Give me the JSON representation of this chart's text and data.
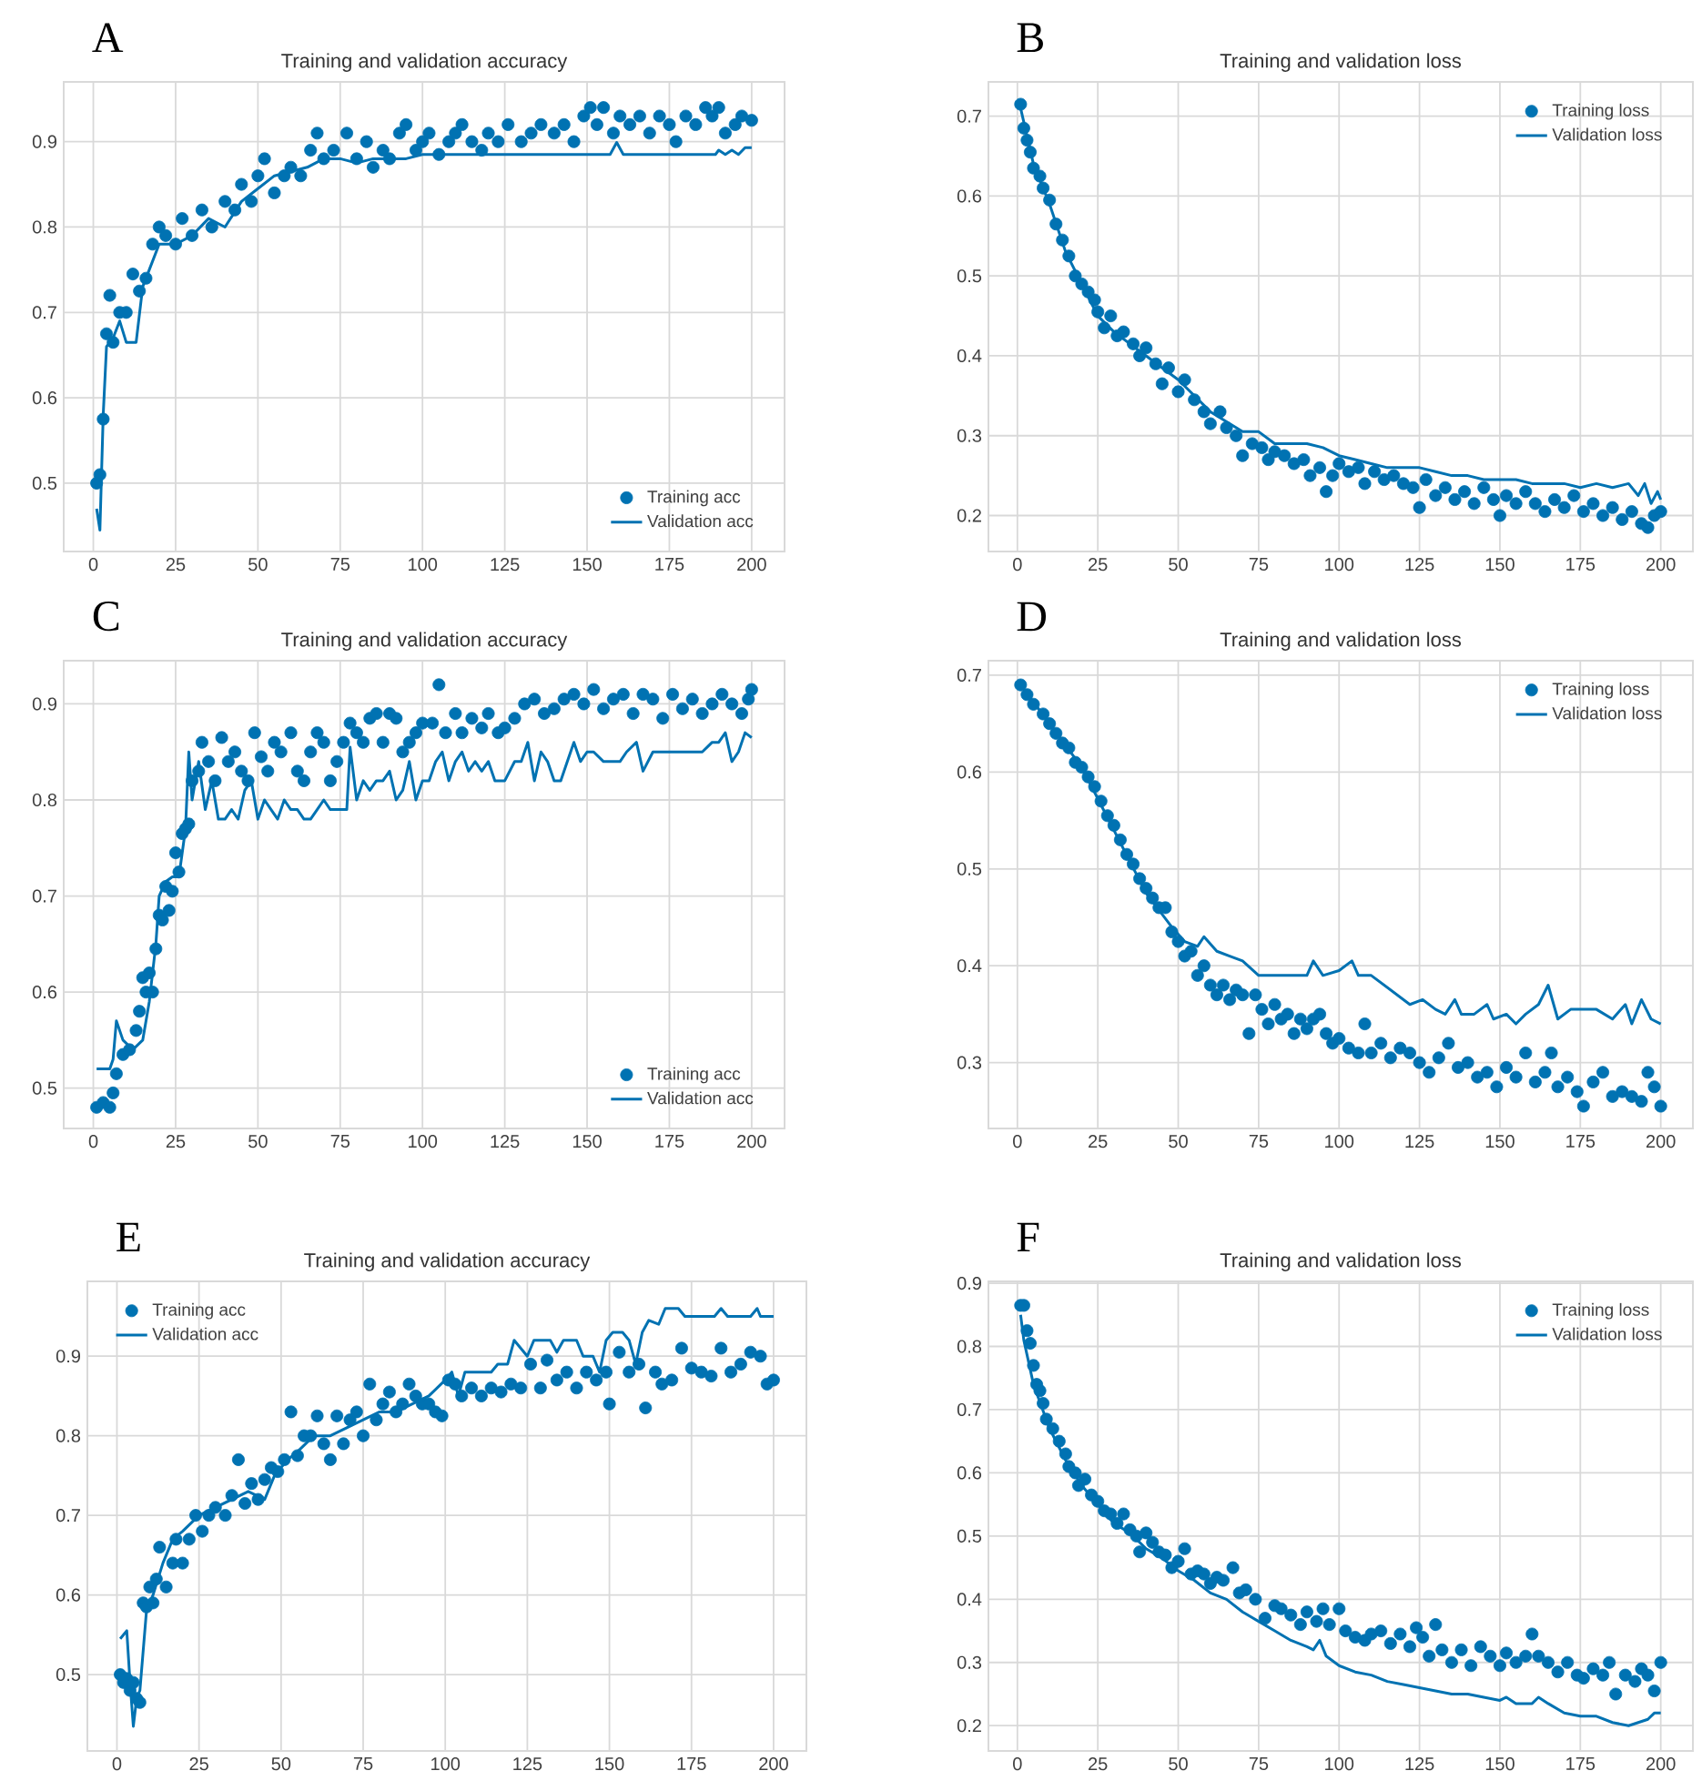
{
  "chart_data": [
    {
      "type": "line",
      "title": "Training and validation accuracy",
      "annotations": [
        "A"
      ],
      "xlim": [
        -9,
        210
      ],
      "xticks": [
        0,
        25,
        50,
        75,
        100,
        125,
        150,
        175,
        200
      ],
      "ylim": [
        0.42,
        0.97
      ],
      "yticks": [
        0.5,
        0.6,
        0.7,
        0.8,
        0.9
      ],
      "grid": true,
      "legend": "bottom right",
      "series": [
        {
          "name": "Training acc",
          "type": "scatter",
          "marker": "circle",
          "color": "#0072b2",
          "x": [
            1,
            2,
            3,
            4,
            5,
            6,
            8,
            10,
            12,
            14,
            16,
            18,
            20,
            22,
            25,
            27,
            30,
            33,
            36,
            40,
            43,
            45,
            48,
            50,
            52,
            55,
            58,
            60,
            63,
            66,
            68,
            70,
            73,
            77,
            80,
            83,
            85,
            88,
            90,
            93,
            95,
            98,
            100,
            102,
            105,
            108,
            110,
            112,
            115,
            118,
            120,
            123,
            126,
            130,
            133,
            136,
            140,
            143,
            146,
            149,
            151,
            153,
            155,
            158,
            160,
            163,
            166,
            169,
            172,
            175,
            177,
            180,
            183,
            186,
            188,
            190,
            192,
            195,
            197,
            200
          ],
          "values": [
            0.5,
            0.51,
            0.575,
            0.675,
            0.72,
            0.665,
            0.7,
            0.7,
            0.745,
            0.725,
            0.74,
            0.78,
            0.8,
            0.79,
            0.78,
            0.81,
            0.79,
            0.82,
            0.8,
            0.83,
            0.82,
            0.85,
            0.83,
            0.86,
            0.88,
            0.84,
            0.86,
            0.87,
            0.86,
            0.89,
            0.91,
            0.88,
            0.89,
            0.91,
            0.88,
            0.9,
            0.87,
            0.89,
            0.88,
            0.91,
            0.92,
            0.89,
            0.9,
            0.91,
            0.885,
            0.9,
            0.91,
            0.92,
            0.9,
            0.89,
            0.91,
            0.9,
            0.92,
            0.9,
            0.91,
            0.92,
            0.91,
            0.92,
            0.9,
            0.93,
            0.94,
            0.92,
            0.94,
            0.91,
            0.93,
            0.92,
            0.93,
            0.91,
            0.93,
            0.92,
            0.9,
            0.93,
            0.92,
            0.94,
            0.93,
            0.94,
            0.91,
            0.92,
            0.93,
            0.925
          ]
        },
        {
          "name": "Validation acc",
          "type": "line",
          "marker": "none",
          "color": "#0072b2",
          "x": [
            1,
            2,
            3,
            4,
            6,
            8,
            10,
            13,
            15,
            17,
            20,
            25,
            30,
            35,
            40,
            45,
            50,
            55,
            60,
            65,
            70,
            75,
            80,
            85,
            90,
            95,
            100,
            105,
            110,
            120,
            130,
            140,
            150,
            157,
            159,
            161,
            170,
            189,
            190,
            192,
            194,
            196,
            198,
            200
          ],
          "values": [
            0.47,
            0.445,
            0.58,
            0.66,
            0.67,
            0.69,
            0.665,
            0.665,
            0.73,
            0.75,
            0.78,
            0.78,
            0.79,
            0.81,
            0.8,
            0.83,
            0.845,
            0.86,
            0.865,
            0.87,
            0.88,
            0.88,
            0.875,
            0.88,
            0.88,
            0.88,
            0.885,
            0.885,
            0.885,
            0.885,
            0.885,
            0.885,
            0.885,
            0.885,
            0.899,
            0.885,
            0.885,
            0.885,
            0.89,
            0.885,
            0.89,
            0.885,
            0.893,
            0.893
          ]
        }
      ]
    },
    {
      "type": "line",
      "title": "Training and validation loss",
      "annotations": [
        "B"
      ],
      "xlim": [
        -9,
        210
      ],
      "xticks": [
        0,
        25,
        50,
        75,
        100,
        125,
        150,
        175,
        200
      ],
      "ylim": [
        0.155,
        0.743
      ],
      "yticks": [
        0.2,
        0.3,
        0.4,
        0.5,
        0.6,
        0.7
      ],
      "grid": true,
      "legend": "top right",
      "series": [
        {
          "name": "Training loss",
          "type": "scatter",
          "marker": "circle",
          "color": "#0072b2",
          "x": [
            1,
            2,
            3,
            4,
            5,
            7,
            8,
            10,
            12,
            14,
            16,
            18,
            20,
            22,
            24,
            25,
            27,
            29,
            31,
            33,
            36,
            38,
            40,
            43,
            45,
            47,
            50,
            52,
            55,
            58,
            60,
            63,
            65,
            68,
            70,
            73,
            76,
            78,
            80,
            83,
            86,
            89,
            91,
            94,
            96,
            98,
            100,
            103,
            106,
            108,
            111,
            114,
            117,
            120,
            123,
            125,
            127,
            130,
            133,
            136,
            139,
            142,
            145,
            148,
            150,
            152,
            155,
            158,
            161,
            164,
            167,
            170,
            173,
            176,
            179,
            182,
            185,
            188,
            191,
            194,
            196,
            198,
            200
          ],
          "values": [
            0.715,
            0.685,
            0.67,
            0.655,
            0.635,
            0.625,
            0.61,
            0.595,
            0.565,
            0.545,
            0.525,
            0.5,
            0.49,
            0.48,
            0.47,
            0.455,
            0.435,
            0.45,
            0.425,
            0.43,
            0.415,
            0.4,
            0.41,
            0.39,
            0.365,
            0.385,
            0.355,
            0.37,
            0.345,
            0.33,
            0.315,
            0.33,
            0.31,
            0.3,
            0.275,
            0.29,
            0.285,
            0.27,
            0.28,
            0.275,
            0.265,
            0.27,
            0.25,
            0.26,
            0.23,
            0.25,
            0.265,
            0.255,
            0.26,
            0.24,
            0.255,
            0.245,
            0.25,
            0.24,
            0.235,
            0.21,
            0.245,
            0.225,
            0.235,
            0.22,
            0.23,
            0.215,
            0.235,
            0.22,
            0.2,
            0.225,
            0.215,
            0.23,
            0.215,
            0.205,
            0.22,
            0.21,
            0.225,
            0.205,
            0.215,
            0.2,
            0.21,
            0.195,
            0.205,
            0.19,
            0.185,
            0.2,
            0.205
          ]
        },
        {
          "name": "Validation loss",
          "type": "line",
          "marker": "none",
          "color": "#0072b2",
          "x": [
            1,
            5,
            10,
            15,
            20,
            25,
            30,
            40,
            50,
            60,
            70,
            75,
            80,
            90,
            95,
            100,
            105,
            110,
            115,
            120,
            125,
            130,
            135,
            140,
            145,
            150,
            155,
            160,
            165,
            170,
            175,
            180,
            185,
            190,
            193,
            195,
            197,
            199,
            200
          ],
          "values": [
            0.71,
            0.64,
            0.59,
            0.53,
            0.49,
            0.45,
            0.43,
            0.4,
            0.37,
            0.33,
            0.305,
            0.305,
            0.29,
            0.29,
            0.285,
            0.275,
            0.27,
            0.265,
            0.26,
            0.26,
            0.26,
            0.255,
            0.25,
            0.25,
            0.245,
            0.245,
            0.245,
            0.24,
            0.24,
            0.24,
            0.235,
            0.24,
            0.235,
            0.24,
            0.225,
            0.24,
            0.215,
            0.23,
            0.22
          ]
        }
      ]
    },
    {
      "type": "line",
      "title": "Training and validation accuracy",
      "annotations": [
        "C"
      ],
      "xlim": [
        -9,
        210
      ],
      "xticks": [
        0,
        25,
        50,
        75,
        100,
        125,
        150,
        175,
        200
      ],
      "ylim": [
        0.458,
        0.945
      ],
      "yticks": [
        0.5,
        0.6,
        0.7,
        0.8,
        0.9
      ],
      "grid": true,
      "legend": "bottom right",
      "series": [
        {
          "name": "Training acc",
          "type": "scatter",
          "marker": "circle",
          "color": "#0072b2",
          "x": [
            1,
            3,
            5,
            6,
            7,
            9,
            11,
            13,
            14,
            15,
            16,
            17,
            18,
            19,
            20,
            21,
            22,
            23,
            24,
            25,
            26,
            27,
            28,
            29,
            30,
            32,
            33,
            35,
            37,
            39,
            41,
            43,
            45,
            47,
            49,
            51,
            53,
            55,
            57,
            60,
            62,
            64,
            66,
            68,
            70,
            72,
            74,
            76,
            78,
            80,
            82,
            84,
            86,
            88,
            90,
            92,
            94,
            96,
            98,
            100,
            103,
            105,
            107,
            110,
            112,
            115,
            118,
            120,
            123,
            125,
            128,
            131,
            134,
            137,
            140,
            143,
            146,
            149,
            152,
            155,
            158,
            161,
            164,
            167,
            170,
            173,
            176,
            179,
            182,
            185,
            188,
            191,
            194,
            197,
            199,
            200
          ],
          "values": [
            0.48,
            0.485,
            0.48,
            0.495,
            0.515,
            0.535,
            0.54,
            0.56,
            0.58,
            0.615,
            0.6,
            0.62,
            0.6,
            0.645,
            0.68,
            0.675,
            0.71,
            0.685,
            0.705,
            0.745,
            0.725,
            0.765,
            0.77,
            0.775,
            0.82,
            0.83,
            0.86,
            0.84,
            0.82,
            0.865,
            0.84,
            0.85,
            0.83,
            0.82,
            0.87,
            0.845,
            0.83,
            0.86,
            0.85,
            0.87,
            0.83,
            0.82,
            0.85,
            0.87,
            0.86,
            0.82,
            0.84,
            0.86,
            0.88,
            0.87,
            0.86,
            0.885,
            0.89,
            0.86,
            0.89,
            0.885,
            0.85,
            0.86,
            0.87,
            0.88,
            0.88,
            0.92,
            0.87,
            0.89,
            0.87,
            0.885,
            0.875,
            0.89,
            0.87,
            0.875,
            0.885,
            0.9,
            0.905,
            0.89,
            0.895,
            0.905,
            0.91,
            0.9,
            0.915,
            0.895,
            0.905,
            0.91,
            0.89,
            0.91,
            0.905,
            0.885,
            0.91,
            0.895,
            0.905,
            0.89,
            0.9,
            0.91,
            0.9,
            0.89,
            0.905,
            0.915
          ]
        },
        {
          "name": "Validation acc",
          "type": "line",
          "marker": "none",
          "color": "#0072b2",
          "x": [
            1,
            5,
            6,
            7,
            8,
            9,
            12,
            15,
            17,
            19,
            20,
            22,
            24,
            26,
            28,
            29,
            30,
            32,
            34,
            36,
            38,
            40,
            42,
            44,
            46,
            48,
            50,
            52,
            54,
            56,
            58,
            60,
            62,
            64,
            66,
            68,
            70,
            72,
            75,
            77,
            78,
            80,
            82,
            84,
            86,
            88,
            90,
            92,
            94,
            96,
            98,
            100,
            102,
            104,
            106,
            108,
            110,
            112,
            114,
            116,
            118,
            120,
            122,
            125,
            128,
            130,
            132,
            134,
            136,
            138,
            140,
            142,
            144,
            146,
            148,
            150,
            152,
            155,
            160,
            162,
            165,
            167,
            170,
            173,
            176,
            180,
            185,
            188,
            190,
            192,
            194,
            196,
            198,
            200
          ],
          "values": [
            0.52,
            0.52,
            0.53,
            0.57,
            0.56,
            0.55,
            0.54,
            0.55,
            0.59,
            0.65,
            0.7,
            0.715,
            0.72,
            0.72,
            0.77,
            0.85,
            0.8,
            0.84,
            0.79,
            0.82,
            0.78,
            0.78,
            0.79,
            0.78,
            0.81,
            0.82,
            0.78,
            0.8,
            0.79,
            0.78,
            0.8,
            0.79,
            0.79,
            0.78,
            0.78,
            0.79,
            0.8,
            0.79,
            0.79,
            0.79,
            0.855,
            0.8,
            0.82,
            0.81,
            0.82,
            0.82,
            0.83,
            0.8,
            0.81,
            0.84,
            0.8,
            0.82,
            0.82,
            0.84,
            0.85,
            0.82,
            0.84,
            0.85,
            0.83,
            0.84,
            0.83,
            0.84,
            0.82,
            0.82,
            0.84,
            0.84,
            0.86,
            0.82,
            0.85,
            0.84,
            0.82,
            0.82,
            0.84,
            0.86,
            0.84,
            0.85,
            0.85,
            0.84,
            0.84,
            0.85,
            0.86,
            0.83,
            0.85,
            0.85,
            0.85,
            0.85,
            0.85,
            0.86,
            0.86,
            0.87,
            0.84,
            0.85,
            0.87,
            0.865
          ]
        }
      ]
    },
    {
      "type": "line",
      "title": "Training and validation loss",
      "annotations": [
        "D"
      ],
      "xlim": [
        -9,
        210
      ],
      "xticks": [
        0,
        25,
        50,
        75,
        100,
        125,
        150,
        175,
        200
      ],
      "ylim": [
        0.232,
        0.715
      ],
      "yticks": [
        0.3,
        0.4,
        0.5,
        0.6,
        0.7
      ],
      "grid": true,
      "legend": "top right",
      "series": [
        {
          "name": "Training loss",
          "type": "scatter",
          "marker": "circle",
          "color": "#0072b2",
          "x": [
            1,
            3,
            5,
            8,
            10,
            12,
            14,
            16,
            18,
            20,
            22,
            24,
            26,
            28,
            30,
            32,
            34,
            36,
            38,
            40,
            42,
            44,
            46,
            48,
            50,
            52,
            54,
            56,
            58,
            60,
            62,
            64,
            66,
            68,
            70,
            72,
            74,
            76,
            78,
            80,
            82,
            84,
            86,
            88,
            90,
            92,
            94,
            96,
            98,
            100,
            103,
            106,
            108,
            110,
            113,
            116,
            119,
            122,
            125,
            128,
            131,
            134,
            137,
            140,
            143,
            146,
            149,
            152,
            155,
            158,
            161,
            164,
            166,
            168,
            171,
            174,
            176,
            179,
            182,
            185,
            188,
            191,
            194,
            196,
            198,
            200
          ],
          "values": [
            0.69,
            0.68,
            0.67,
            0.66,
            0.65,
            0.64,
            0.63,
            0.625,
            0.61,
            0.605,
            0.595,
            0.585,
            0.57,
            0.555,
            0.545,
            0.53,
            0.515,
            0.505,
            0.49,
            0.48,
            0.47,
            0.46,
            0.46,
            0.435,
            0.425,
            0.41,
            0.415,
            0.39,
            0.4,
            0.38,
            0.37,
            0.38,
            0.365,
            0.375,
            0.37,
            0.33,
            0.37,
            0.355,
            0.34,
            0.36,
            0.345,
            0.35,
            0.33,
            0.345,
            0.335,
            0.345,
            0.35,
            0.33,
            0.32,
            0.325,
            0.315,
            0.31,
            0.34,
            0.31,
            0.32,
            0.305,
            0.315,
            0.31,
            0.3,
            0.29,
            0.305,
            0.32,
            0.295,
            0.3,
            0.285,
            0.29,
            0.275,
            0.295,
            0.285,
            0.31,
            0.28,
            0.29,
            0.31,
            0.275,
            0.285,
            0.27,
            0.255,
            0.28,
            0.29,
            0.265,
            0.27,
            0.265,
            0.26,
            0.29,
            0.275,
            0.255
          ]
        },
        {
          "name": "Validation loss",
          "type": "line",
          "marker": "none",
          "color": "#0072b2",
          "x": [
            1,
            10,
            20,
            30,
            40,
            48,
            52,
            56,
            58,
            62,
            66,
            70,
            75,
            80,
            85,
            90,
            92,
            95,
            100,
            104,
            106,
            110,
            114,
            118,
            122,
            126,
            130,
            133,
            136,
            138,
            142,
            146,
            148,
            152,
            155,
            158,
            162,
            165,
            168,
            172,
            175,
            180,
            185,
            189,
            191,
            194,
            197,
            200
          ],
          "values": [
            0.69,
            0.65,
            0.605,
            0.54,
            0.475,
            0.44,
            0.425,
            0.42,
            0.43,
            0.415,
            0.41,
            0.405,
            0.39,
            0.39,
            0.39,
            0.39,
            0.405,
            0.39,
            0.395,
            0.405,
            0.39,
            0.39,
            0.38,
            0.37,
            0.36,
            0.365,
            0.355,
            0.35,
            0.365,
            0.35,
            0.35,
            0.36,
            0.345,
            0.35,
            0.34,
            0.35,
            0.36,
            0.38,
            0.345,
            0.355,
            0.355,
            0.355,
            0.345,
            0.36,
            0.34,
            0.365,
            0.345,
            0.34
          ]
        }
      ]
    },
    {
      "type": "line",
      "title": "Training and validation accuracy",
      "annotations": [
        "E"
      ],
      "xlim": [
        -9,
        210
      ],
      "xticks": [
        0,
        25,
        50,
        75,
        100,
        125,
        150,
        175,
        200
      ],
      "ylim": [
        0.404,
        0.994
      ],
      "yticks": [
        0.5,
        0.6,
        0.7,
        0.8,
        0.9
      ],
      "grid": true,
      "legend": "top left",
      "series": [
        {
          "name": "Training acc",
          "type": "scatter",
          "marker": "circle",
          "color": "#0072b2",
          "x": [
            1,
            2,
            3,
            4,
            5,
            6,
            7,
            8,
            9,
            10,
            11,
            12,
            13,
            15,
            17,
            18,
            20,
            22,
            24,
            26,
            28,
            30,
            33,
            35,
            37,
            39,
            41,
            43,
            45,
            47,
            49,
            51,
            53,
            55,
            57,
            59,
            61,
            63,
            65,
            67,
            69,
            71,
            73,
            75,
            77,
            79,
            81,
            83,
            85,
            87,
            89,
            91,
            93,
            95,
            97,
            99,
            101,
            103,
            105,
            108,
            111,
            114,
            117,
            120,
            123,
            126,
            129,
            131,
            134,
            137,
            140,
            143,
            146,
            149,
            150,
            153,
            156,
            159,
            161,
            164,
            166,
            169,
            172,
            175,
            178,
            181,
            184,
            187,
            190,
            193,
            196,
            198,
            200
          ],
          "values": [
            0.5,
            0.49,
            0.495,
            0.48,
            0.49,
            0.47,
            0.465,
            0.59,
            0.585,
            0.61,
            0.59,
            0.62,
            0.66,
            0.61,
            0.64,
            0.67,
            0.64,
            0.67,
            0.7,
            0.68,
            0.7,
            0.71,
            0.7,
            0.725,
            0.77,
            0.715,
            0.74,
            0.72,
            0.745,
            0.76,
            0.755,
            0.77,
            0.83,
            0.775,
            0.8,
            0.8,
            0.825,
            0.79,
            0.77,
            0.825,
            0.79,
            0.82,
            0.83,
            0.8,
            0.865,
            0.82,
            0.84,
            0.855,
            0.83,
            0.84,
            0.865,
            0.85,
            0.84,
            0.84,
            0.83,
            0.825,
            0.87,
            0.865,
            0.85,
            0.86,
            0.85,
            0.86,
            0.855,
            0.865,
            0.86,
            0.89,
            0.86,
            0.895,
            0.87,
            0.88,
            0.86,
            0.88,
            0.87,
            0.88,
            0.84,
            0.905,
            0.88,
            0.89,
            0.835,
            0.88,
            0.865,
            0.87,
            0.91,
            0.885,
            0.88,
            0.875,
            0.91,
            0.88,
            0.89,
            0.905,
            0.9,
            0.865,
            0.87
          ]
        },
        {
          "name": "Validation acc",
          "type": "line",
          "marker": "none",
          "color": "#0072b2",
          "x": [
            1,
            3,
            4,
            5,
            6,
            7,
            9,
            11,
            14,
            17,
            20,
            25,
            30,
            35,
            40,
            45,
            48,
            52,
            55,
            60,
            65,
            70,
            75,
            80,
            85,
            90,
            95,
            100,
            102,
            104,
            106,
            108,
            110,
            114,
            116,
            119,
            121,
            123,
            125,
            127,
            129,
            132,
            134,
            136,
            140,
            142,
            145,
            147,
            149,
            151,
            154,
            156,
            158,
            160,
            162,
            165,
            167,
            171,
            173,
            180,
            182,
            184,
            186,
            193,
            195,
            196,
            200
          ],
          "values": [
            0.545,
            0.555,
            0.49,
            0.435,
            0.47,
            0.48,
            0.58,
            0.6,
            0.64,
            0.67,
            0.68,
            0.7,
            0.71,
            0.72,
            0.73,
            0.72,
            0.75,
            0.77,
            0.78,
            0.8,
            0.8,
            0.81,
            0.82,
            0.83,
            0.83,
            0.84,
            0.85,
            0.87,
            0.88,
            0.85,
            0.88,
            0.88,
            0.88,
            0.88,
            0.89,
            0.89,
            0.92,
            0.91,
            0.9,
            0.92,
            0.92,
            0.92,
            0.905,
            0.92,
            0.92,
            0.9,
            0.9,
            0.88,
            0.92,
            0.93,
            0.93,
            0.92,
            0.89,
            0.93,
            0.945,
            0.94,
            0.96,
            0.96,
            0.95,
            0.95,
            0.95,
            0.96,
            0.95,
            0.95,
            0.96,
            0.95,
            0.95
          ]
        }
      ]
    },
    {
      "type": "line",
      "title": "Training and validation loss",
      "annotations": [
        "F"
      ],
      "xlim": [
        -9,
        210
      ],
      "xticks": [
        0,
        25,
        50,
        75,
        100,
        125,
        150,
        175,
        200
      ],
      "ylim": [
        0.16,
        0.903
      ],
      "yticks": [
        0.2,
        0.3,
        0.4,
        0.5,
        0.6,
        0.7,
        0.8,
        0.9
      ],
      "grid": true,
      "legend": "top right",
      "series": [
        {
          "name": "Training loss",
          "type": "scatter",
          "marker": "circle",
          "color": "#0072b2",
          "x": [
            1,
            2,
            3,
            4,
            5,
            6,
            7,
            8,
            9,
            11,
            13,
            15,
            16,
            18,
            19,
            21,
            23,
            25,
            27,
            29,
            31,
            33,
            35,
            37,
            38,
            40,
            42,
            44,
            46,
            48,
            50,
            52,
            54,
            56,
            58,
            60,
            62,
            64,
            67,
            69,
            71,
            74,
            77,
            80,
            82,
            85,
            88,
            90,
            93,
            95,
            97,
            100,
            102,
            105,
            108,
            110,
            113,
            116,
            119,
            122,
            124,
            126,
            128,
            130,
            132,
            135,
            138,
            141,
            144,
            147,
            150,
            152,
            155,
            158,
            160,
            162,
            165,
            168,
            171,
            174,
            176,
            179,
            182,
            184,
            186,
            189,
            192,
            194,
            196,
            198,
            200
          ],
          "values": [
            0.865,
            0.865,
            0.825,
            0.805,
            0.77,
            0.74,
            0.73,
            0.71,
            0.685,
            0.67,
            0.65,
            0.63,
            0.61,
            0.6,
            0.58,
            0.59,
            0.565,
            0.555,
            0.54,
            0.535,
            0.52,
            0.535,
            0.51,
            0.5,
            0.475,
            0.505,
            0.49,
            0.475,
            0.47,
            0.45,
            0.46,
            0.48,
            0.44,
            0.445,
            0.44,
            0.425,
            0.435,
            0.43,
            0.45,
            0.41,
            0.415,
            0.4,
            0.37,
            0.39,
            0.385,
            0.375,
            0.36,
            0.38,
            0.365,
            0.385,
            0.36,
            0.385,
            0.35,
            0.34,
            0.335,
            0.345,
            0.35,
            0.33,
            0.345,
            0.325,
            0.355,
            0.34,
            0.31,
            0.36,
            0.32,
            0.3,
            0.32,
            0.295,
            0.325,
            0.31,
            0.295,
            0.315,
            0.3,
            0.31,
            0.345,
            0.31,
            0.3,
            0.285,
            0.3,
            0.28,
            0.275,
            0.29,
            0.28,
            0.3,
            0.25,
            0.28,
            0.27,
            0.29,
            0.28,
            0.255,
            0.3
          ]
        },
        {
          "name": "Validation loss",
          "type": "line",
          "marker": "none",
          "color": "#0072b2",
          "x": [
            1,
            2,
            5,
            10,
            15,
            20,
            25,
            30,
            35,
            40,
            45,
            50,
            55,
            60,
            65,
            70,
            75,
            80,
            85,
            90,
            92,
            94,
            96,
            100,
            105,
            110,
            115,
            120,
            125,
            130,
            135,
            140,
            145,
            150,
            152,
            155,
            160,
            162,
            165,
            170,
            175,
            180,
            185,
            190,
            193,
            196,
            198,
            200
          ],
          "values": [
            0.85,
            0.81,
            0.74,
            0.67,
            0.62,
            0.58,
            0.55,
            0.52,
            0.505,
            0.48,
            0.465,
            0.445,
            0.43,
            0.41,
            0.4,
            0.38,
            0.365,
            0.35,
            0.335,
            0.325,
            0.32,
            0.335,
            0.31,
            0.295,
            0.285,
            0.28,
            0.27,
            0.265,
            0.26,
            0.255,
            0.25,
            0.25,
            0.245,
            0.24,
            0.245,
            0.235,
            0.235,
            0.245,
            0.235,
            0.22,
            0.215,
            0.215,
            0.205,
            0.2,
            0.205,
            0.21,
            0.22,
            0.22
          ]
        }
      ]
    }
  ]
}
